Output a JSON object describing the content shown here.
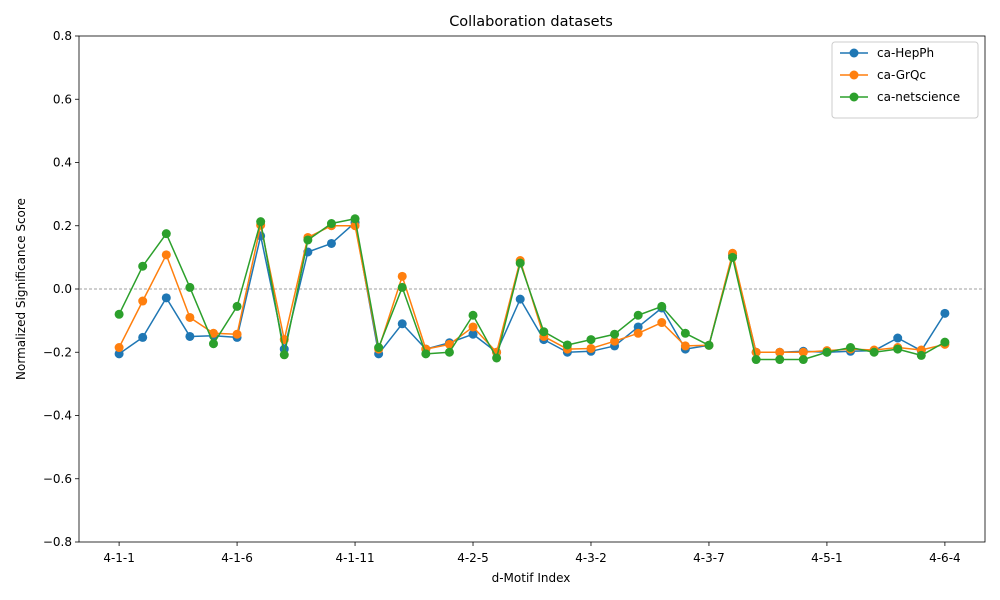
{
  "chart_data": {
    "type": "line",
    "title": "Collaboration datasets",
    "xlabel": "d-Motif Index",
    "ylabel": "Normalized Significance Score",
    "ylim": [
      -0.8,
      0.8
    ],
    "yticks": [
      "−0.8",
      "−0.6",
      "−0.4",
      "−0.2",
      "0.0",
      "0.2",
      "0.4",
      "0.6",
      "0.8"
    ],
    "ytick_values": [
      -0.8,
      -0.6,
      -0.4,
      -0.2,
      0.0,
      0.2,
      0.4,
      0.6,
      0.8
    ],
    "xtick_labels": [
      "4-1-1",
      "4-1-6",
      "4-1-11",
      "4-2-5",
      "4-3-2",
      "4-3-7",
      "4-5-1",
      "4-6-4"
    ],
    "xtick_positions": [
      0,
      5,
      10,
      15,
      20,
      25,
      30,
      35
    ],
    "n_points": 36,
    "reference_line": 0.0,
    "legend_position": "top-right",
    "series": [
      {
        "name": "ca-HepPh",
        "color": "#1f77b4",
        "values": [
          -0.205,
          -0.153,
          -0.028,
          -0.15,
          -0.148,
          -0.153,
          0.168,
          -0.19,
          0.117,
          0.144,
          0.21,
          -0.205,
          -0.11,
          -0.19,
          -0.17,
          -0.143,
          -0.2,
          -0.032,
          -0.16,
          -0.2,
          -0.197,
          -0.18,
          -0.12,
          -0.06,
          -0.19,
          -0.178,
          0.107,
          -0.2,
          -0.2,
          -0.197,
          -0.2,
          -0.197,
          -0.195,
          -0.155,
          -0.195,
          -0.077
        ]
      },
      {
        "name": "ca-GrQc",
        "color": "#ff7f0e",
        "values": [
          -0.185,
          -0.038,
          0.108,
          -0.09,
          -0.14,
          -0.143,
          0.202,
          -0.16,
          0.163,
          0.2,
          0.2,
          -0.19,
          0.04,
          -0.19,
          -0.175,
          -0.12,
          -0.2,
          0.09,
          -0.15,
          -0.19,
          -0.188,
          -0.165,
          -0.14,
          -0.106,
          -0.18,
          -0.178,
          0.113,
          -0.2,
          -0.2,
          -0.2,
          -0.195,
          -0.19,
          -0.193,
          -0.185,
          -0.193,
          -0.175
        ]
      },
      {
        "name": "ca-netscience",
        "color": "#2ca02c",
        "values": [
          -0.08,
          0.072,
          0.175,
          0.005,
          -0.173,
          -0.055,
          0.213,
          -0.208,
          0.155,
          0.207,
          0.222,
          -0.185,
          0.005,
          -0.205,
          -0.2,
          -0.083,
          -0.218,
          0.082,
          -0.135,
          -0.177,
          -0.16,
          -0.143,
          -0.083,
          -0.055,
          -0.14,
          -0.178,
          0.1,
          -0.223,
          -0.223,
          -0.223,
          -0.2,
          -0.185,
          -0.2,
          -0.19,
          -0.21,
          -0.168
        ]
      }
    ]
  }
}
